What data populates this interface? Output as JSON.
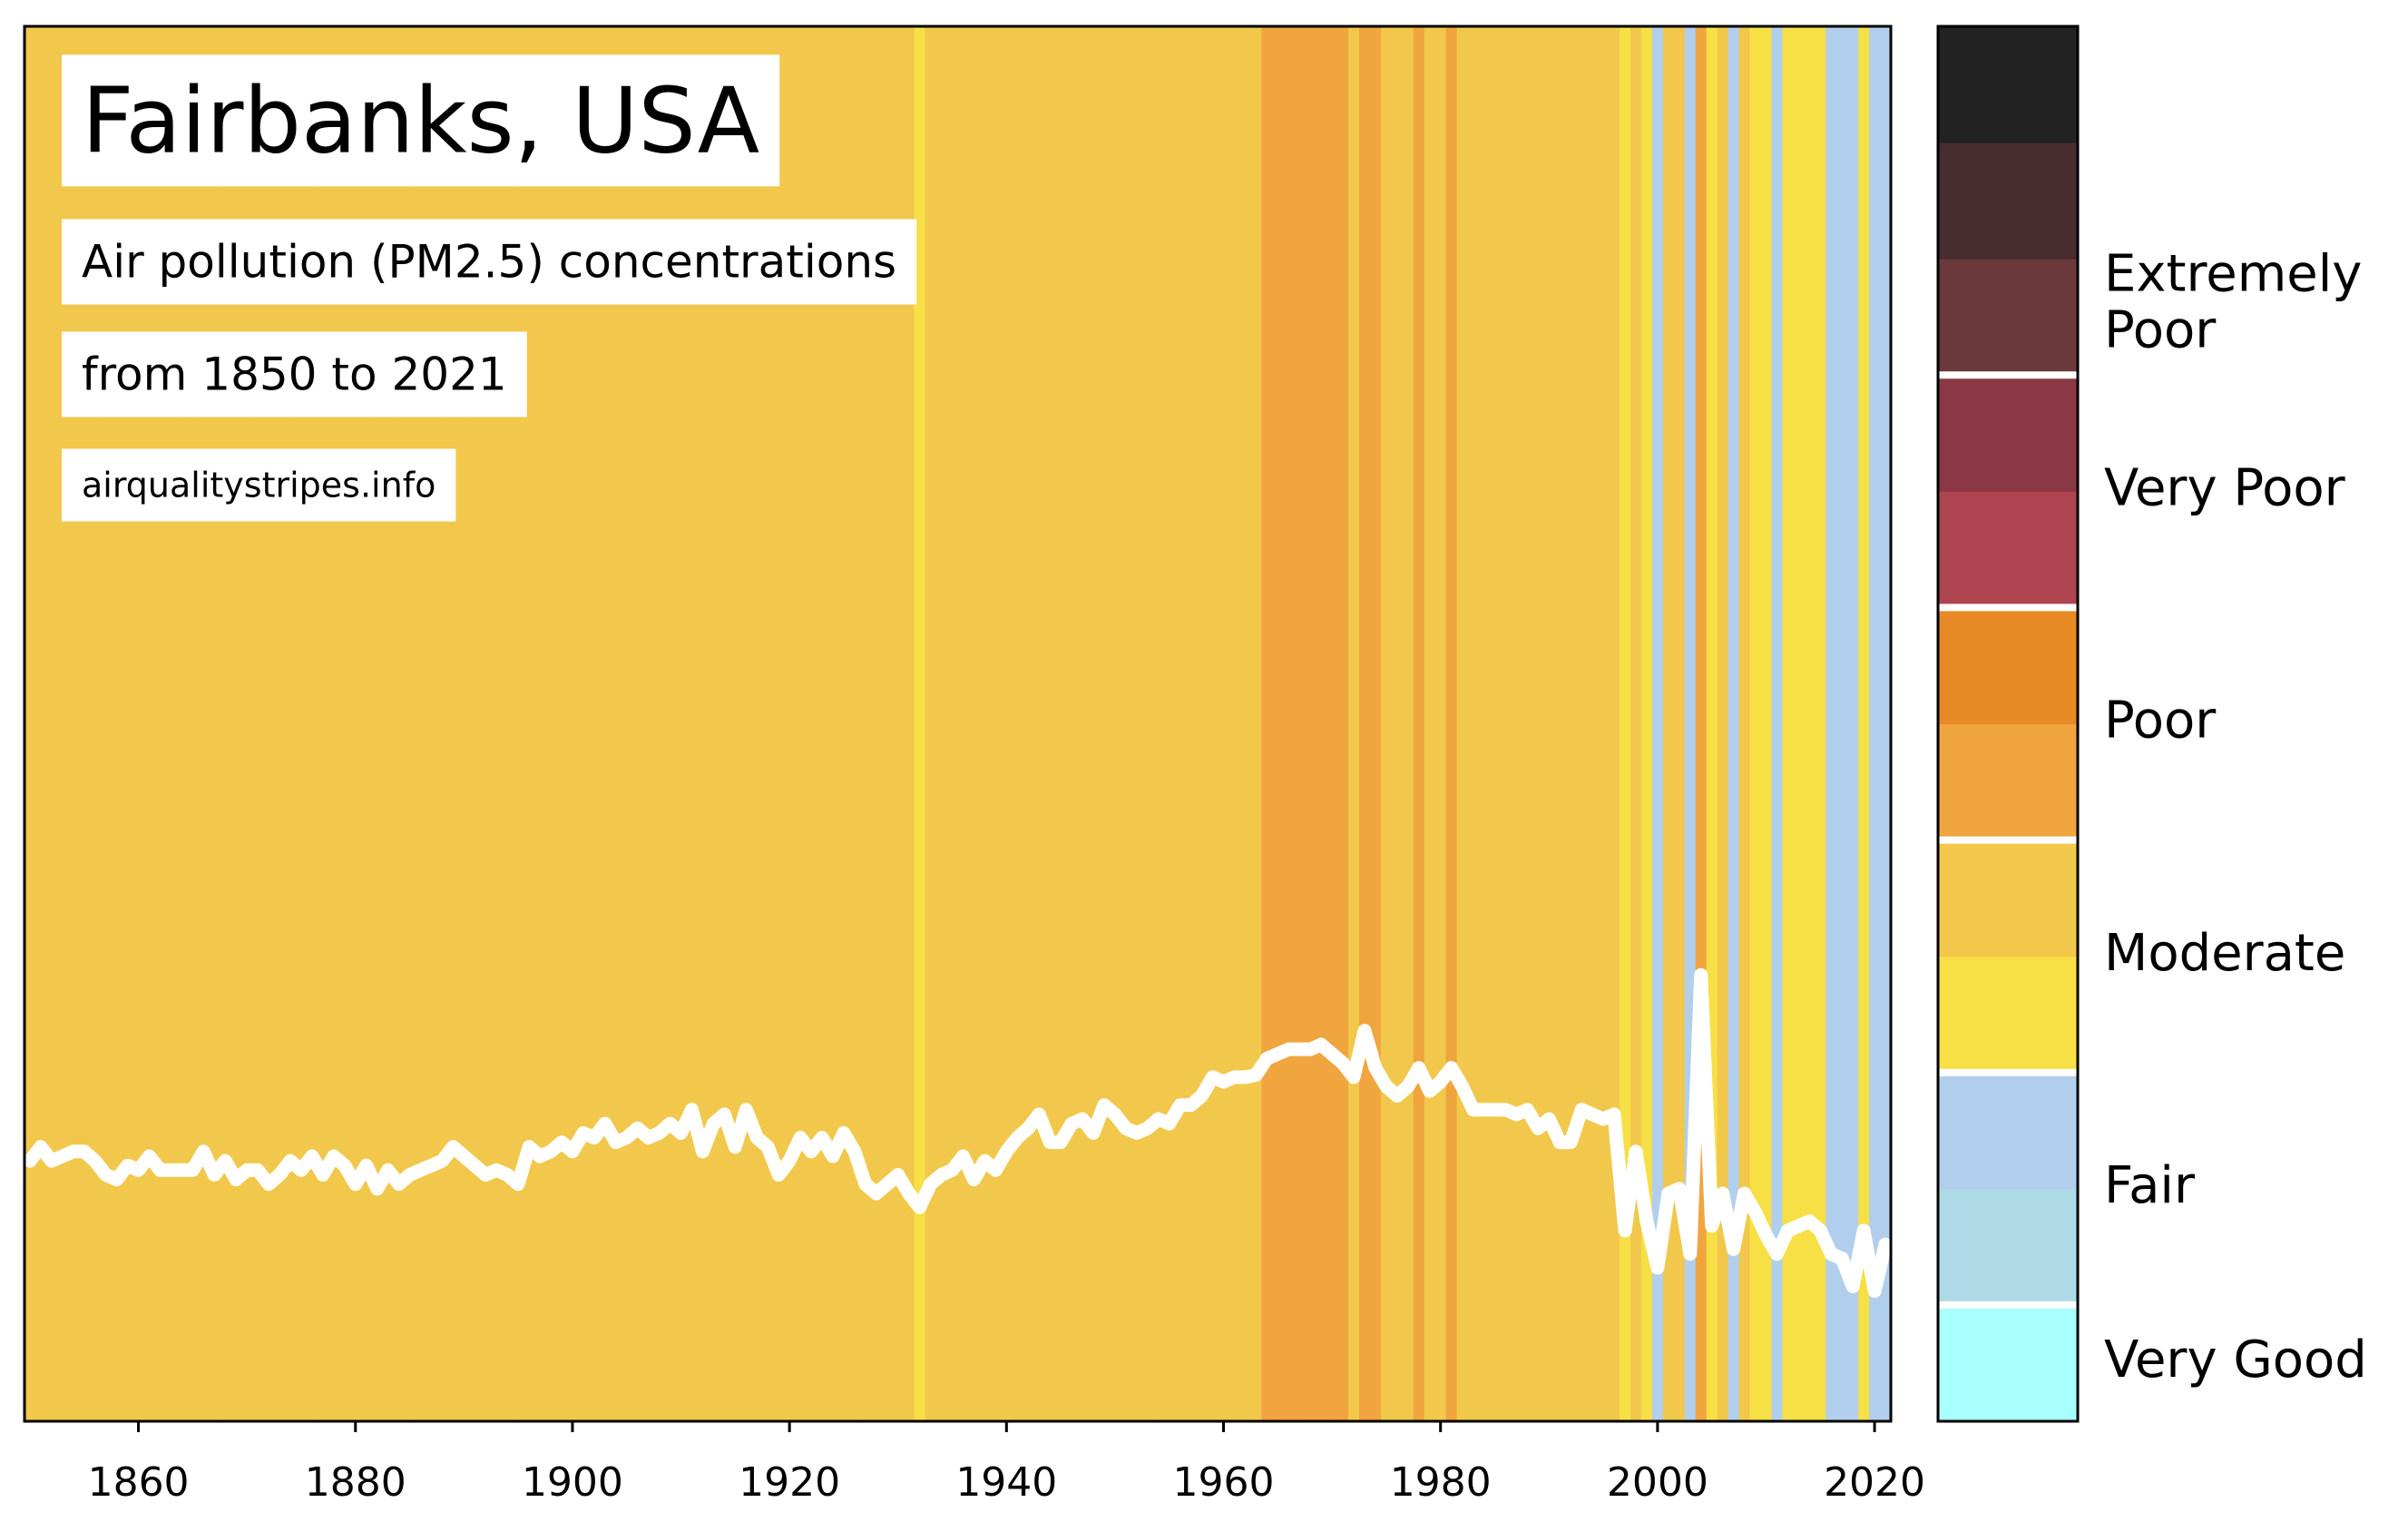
{
  "chart_data": {
    "type": "stripes",
    "title": "Fairbanks, USA",
    "subtitle": [
      "Air pollution (PM2.5) concentrations",
      "from 1850 to 2021"
    ],
    "source": "airqualitystripes.info",
    "x": [
      1850,
      1851,
      1852,
      1853,
      1854,
      1855,
      1856,
      1857,
      1858,
      1859,
      1860,
      1861,
      1862,
      1863,
      1864,
      1865,
      1866,
      1867,
      1868,
      1869,
      1870,
      1871,
      1872,
      1873,
      1874,
      1875,
      1876,
      1877,
      1878,
      1879,
      1880,
      1881,
      1882,
      1883,
      1884,
      1885,
      1886,
      1887,
      1888,
      1889,
      1890,
      1891,
      1892,
      1893,
      1894,
      1895,
      1896,
      1897,
      1898,
      1899,
      1900,
      1901,
      1902,
      1903,
      1904,
      1905,
      1906,
      1907,
      1908,
      1909,
      1910,
      1911,
      1912,
      1913,
      1914,
      1915,
      1916,
      1917,
      1918,
      1919,
      1920,
      1921,
      1922,
      1923,
      1924,
      1925,
      1926,
      1927,
      1928,
      1929,
      1930,
      1931,
      1932,
      1933,
      1934,
      1935,
      1936,
      1937,
      1938,
      1939,
      1940,
      1941,
      1942,
      1943,
      1944,
      1945,
      1946,
      1947,
      1948,
      1949,
      1950,
      1951,
      1952,
      1953,
      1954,
      1955,
      1956,
      1957,
      1958,
      1959,
      1960,
      1961,
      1962,
      1963,
      1964,
      1965,
      1966,
      1967,
      1968,
      1969,
      1970,
      1971,
      1972,
      1973,
      1974,
      1975,
      1976,
      1977,
      1978,
      1979,
      1980,
      1981,
      1982,
      1983,
      1984,
      1985,
      1986,
      1987,
      1988,
      1989,
      1990,
      1991,
      1992,
      1993,
      1994,
      1995,
      1996,
      1997,
      1998,
      1999,
      2000,
      2001,
      2002,
      2003,
      2004,
      2005,
      2006,
      2007,
      2008,
      2009,
      2010,
      2011,
      2012,
      2013,
      2014,
      2015,
      2016,
      2017,
      2018,
      2019,
      2020,
      2021
    ],
    "values": [
      5.6,
      5.9,
      5.6,
      5.7,
      5.8,
      5.8,
      5.6,
      5.3,
      5.2,
      5.5,
      5.4,
      5.7,
      5.4,
      5.4,
      5.4,
      5.4,
      5.8,
      5.3,
      5.6,
      5.2,
      5.4,
      5.4,
      5.1,
      5.3,
      5.6,
      5.4,
      5.7,
      5.3,
      5.7,
      5.5,
      5.1,
      5.5,
      5.0,
      5.4,
      5.1,
      5.3,
      5.4,
      5.5,
      5.6,
      5.9,
      5.7,
      5.5,
      5.3,
      5.4,
      5.3,
      5.1,
      5.9,
      5.7,
      5.8,
      6.0,
      5.8,
      6.2,
      6.1,
      6.4,
      6.0,
      6.1,
      6.3,
      6.1,
      6.2,
      6.4,
      6.2,
      6.7,
      5.8,
      6.4,
      6.6,
      5.9,
      6.7,
      6.1,
      5.9,
      5.3,
      5.6,
      6.1,
      5.8,
      6.1,
      5.7,
      6.2,
      5.8,
      5.1,
      4.9,
      5.1,
      5.3,
      4.9,
      4.6,
      5.1,
      5.3,
      5.4,
      5.7,
      5.2,
      5.6,
      5.4,
      5.8,
      6.1,
      6.3,
      6.6,
      6.0,
      6.0,
      6.4,
      6.5,
      6.2,
      6.8,
      6.6,
      6.3,
      6.2,
      6.3,
      6.5,
      6.4,
      6.8,
      6.8,
      7.0,
      7.4,
      7.3,
      7.4,
      7.4,
      7.45,
      7.8,
      7.9,
      8.0,
      8.0,
      8.0,
      8.1,
      7.9,
      7.7,
      7.4,
      8.4,
      7.6,
      7.2,
      7.0,
      7.2,
      7.6,
      7.1,
      7.3,
      7.6,
      7.2,
      6.7,
      6.7,
      6.7,
      6.7,
      6.6,
      6.7,
      6.3,
      6.5,
      6.0,
      6.0,
      6.7,
      6.6,
      6.5,
      6.6,
      4.1,
      5.8,
      4.3,
      3.3,
      4.9,
      5.0,
      3.6,
      9.6,
      4.2,
      4.9,
      3.7,
      4.9,
      4.5,
      4.0,
      3.6,
      4.1,
      4.2,
      4.3,
      4.1,
      3.6,
      3.5,
      2.9,
      4.1,
      2.8,
      3.8
    ],
    "xlim": [
      1849.5,
      2021.5
    ],
    "ylim": [
      0,
      30
    ],
    "xticks": [
      1860,
      1880,
      1900,
      1920,
      1940,
      1960,
      1980,
      2000,
      2020
    ],
    "line_color": "#ffffff",
    "colorbar": {
      "colors": [
        "#a8fffe",
        "#aed9e6",
        "#b1cfed",
        "#f7df46",
        "#f1c84b",
        "#f0a53f",
        "#e88a26",
        "#ae4551",
        "#8a3845",
        "#6b383b",
        "#472d2f",
        "#222222"
      ],
      "bounds": [
        0,
        1.5,
        2.5,
        4.0,
        4.85,
        7.5,
        10,
        12.5,
        15,
        17.5,
        20,
        22.5,
        25
      ],
      "labels": [
        "Very Good",
        "Fair",
        "Moderate",
        "Poor",
        "Very Poor",
        "Extremely Poor"
      ]
    }
  }
}
